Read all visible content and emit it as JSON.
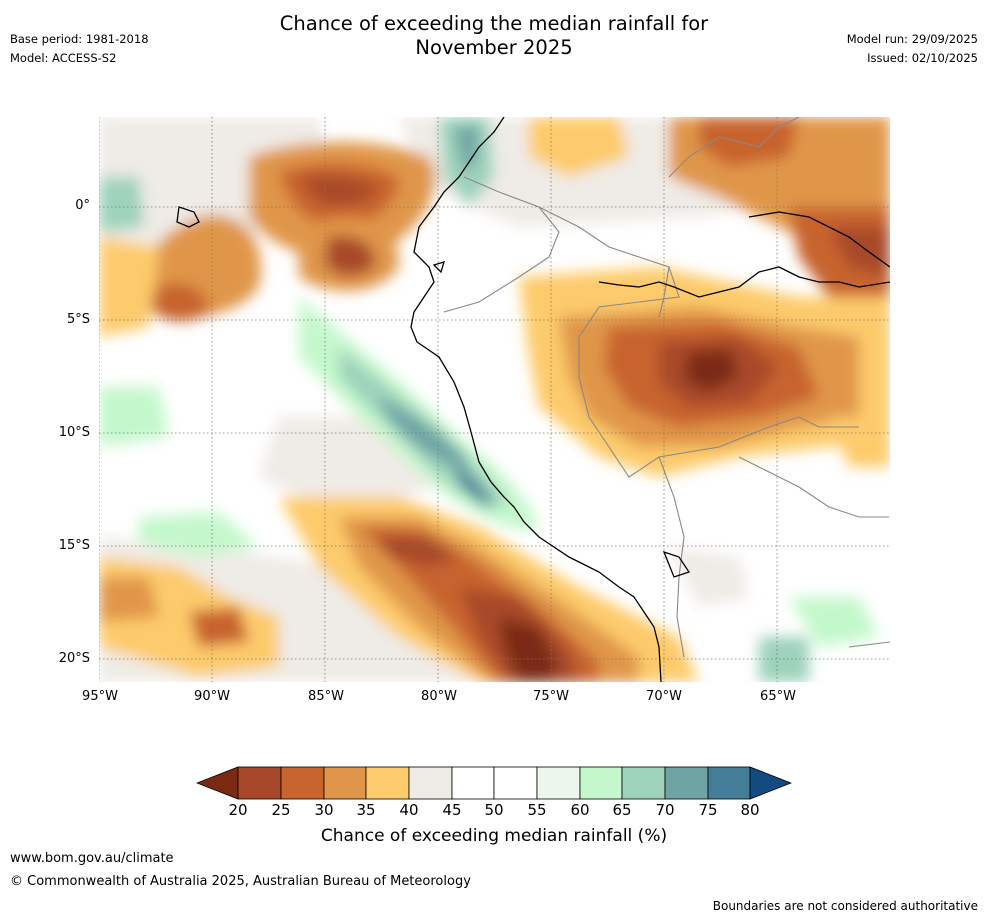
{
  "header": {
    "title_line1": "Chance of exceeding the median rainfall for",
    "title_line2": "November 2025",
    "base_period": "Base period: 1981-2018",
    "model": "Model: ACCESS-S2",
    "model_run": "Model run: 29/09/2025",
    "issued": "Issued: 02/10/2025"
  },
  "map": {
    "region": "north-western South America and adjacent eastern Pacific",
    "lat_labels": [
      "0°",
      "5°S",
      "10°S",
      "15°S",
      "20°S"
    ],
    "lon_labels": [
      "95°W",
      "90°W",
      "85°W",
      "80°W",
      "75°W",
      "70°W",
      "65°W"
    ]
  },
  "colorbar": {
    "ticks": [
      "20",
      "25",
      "30",
      "35",
      "40",
      "45",
      "50",
      "55",
      "60",
      "65",
      "70",
      "75",
      "80"
    ],
    "colors": [
      "#7a2a12",
      "#a8482a",
      "#c8642e",
      "#e0964a",
      "#fdcb6c",
      "#efebe6",
      "#ffffff",
      "#ffffff",
      "#ecf6ec",
      "#c4f8cc",
      "#9dd2bb",
      "#6ea4a4",
      "#427e98",
      "#134a80"
    ],
    "label": "Chance of exceeding median rainfall (%)"
  },
  "footer": {
    "url": "www.bom.gov.au/climate",
    "copyright": "© Commonwealth of Australia 2025, Australian Bureau of Meteorology",
    "note": "Boundaries are not considered authoritative"
  }
}
